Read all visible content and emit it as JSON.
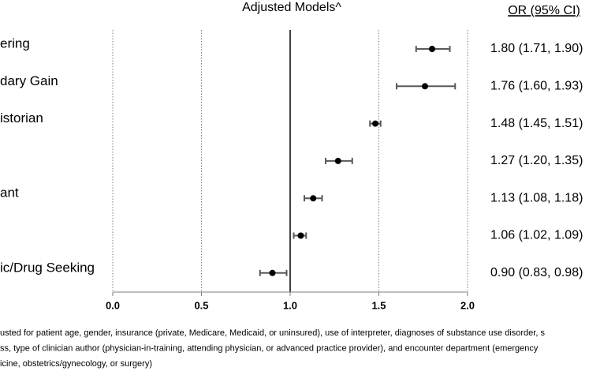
{
  "chart_data": {
    "type": "forest",
    "title": "Adjusted Models^",
    "value_column_header": "OR (95% CI)",
    "categories": [
      "ering",
      "dary Gain",
      "istorian",
      null,
      "ant",
      null,
      "ic/Drug Seeking"
    ],
    "values": [
      1.8,
      1.76,
      1.48,
      1.27,
      1.13,
      1.06,
      0.9
    ],
    "lower": [
      1.71,
      1.6,
      1.45,
      1.2,
      1.08,
      1.02,
      0.83
    ],
    "upper": [
      1.9,
      1.93,
      1.51,
      1.35,
      1.18,
      1.09,
      0.98
    ],
    "value_labels": [
      "1.80 (1.71, 1.90)",
      "1.76 (1.60, 1.93)",
      "1.48 (1.45, 1.51)",
      "1.27 (1.20, 1.35)",
      "1.13 (1.08, 1.18)",
      "1.06 (1.02, 1.09)",
      "0.90 (0.83, 0.98)"
    ],
    "color": "#000000",
    "whisker_color": "#595959",
    "xlim": [
      0,
      2
    ],
    "xticks": [
      {
        "value": 0,
        "label": "0.0"
      },
      0.5,
      {
        "value": 1,
        "label": "1.0"
      },
      1.5,
      {
        "value": 2,
        "label": "2.0"
      }
    ],
    "reference_line": 1,
    "grid": true,
    "footnote": [
      "usted for patient age, gender, insurance (private, Medicare, Medicaid, or uninsured), use of interpreter, diagnoses of substance use disorder, s",
      "ss, type of clinician author (physician-in-training, attending physician, or advanced practice provider), and encounter department (emergency",
      "icine, obstetrics/gynecology, or surgery)"
    ]
  }
}
